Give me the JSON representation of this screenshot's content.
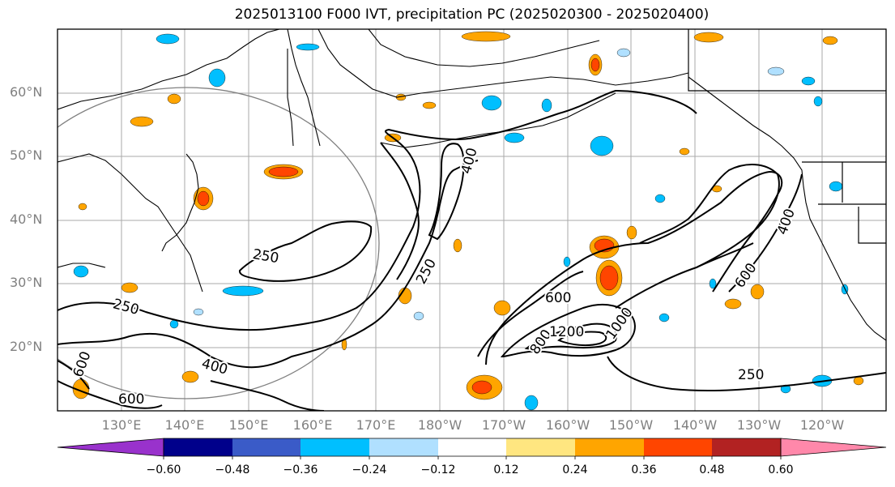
{
  "title": "2025013100 F000 IVT, precipitation PC (2025020300 - 2025020400)",
  "map": {
    "latitude_labels": [
      "60°N",
      "50°N",
      "40°N",
      "30°N",
      "20°N"
    ],
    "longitude_labels": [
      "130°E",
      "140°E",
      "150°E",
      "160°E",
      "170°E",
      "180°W",
      "170°W",
      "160°W",
      "150°W",
      "140°W",
      "130°W",
      "120°W"
    ],
    "contour_labels": {
      "c250_west": "250",
      "c250_center": "250",
      "c250_north": "250",
      "c400_north": "400",
      "c400_south": "400",
      "c600_south": "600",
      "c600_east": "600",
      "c600_west": "600",
      "c800_east": "800",
      "c1200": "1200",
      "c1000": "1000",
      "c600_central": "600",
      "c250_southeast": "250",
      "c400_northeast": "400"
    }
  },
  "colorbar": {
    "colors": [
      "#9932cc",
      "#00008b",
      "#3a5bc8",
      "#00bfff",
      "#b0e0ff",
      "#ffffff",
      "#ffe680",
      "#ffa500",
      "#ff4500",
      "#b22222",
      "#ff88aa"
    ],
    "tick_labels": [
      "−0.60",
      "−0.48",
      "−0.36",
      "−0.24",
      "−0.12",
      "0.12",
      "0.24",
      "0.36",
      "0.48",
      "0.60"
    ]
  }
}
